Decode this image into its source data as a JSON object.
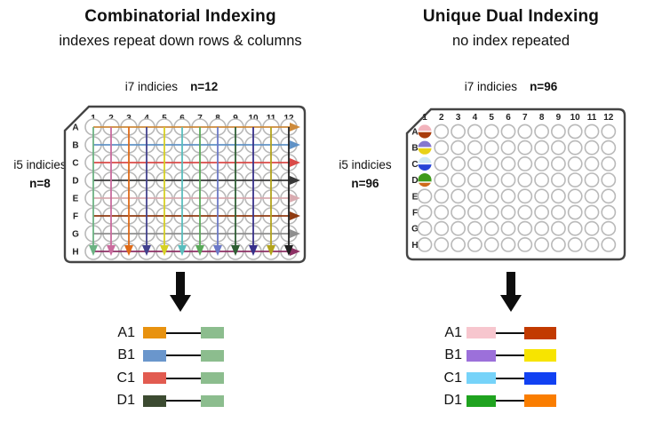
{
  "left_panel": {
    "title": "Combinatorial Indexing",
    "subtitle": "indexes repeat down rows & columns",
    "i7_label": "i7 indicies",
    "i7_n": "n=12",
    "i5_label": "i5 indicies",
    "i5_n": "n=8",
    "plate": {
      "row_labels": [
        "A",
        "B",
        "C",
        "D",
        "E",
        "F",
        "G",
        "H"
      ],
      "col_labels": [
        "1",
        "2",
        "3",
        "4",
        "5",
        "6",
        "7",
        "8",
        "9",
        "10",
        "11",
        "12"
      ],
      "row_arrow_colors": [
        "#cd8a3b",
        "#6092c6",
        "#d94a47",
        "#383838",
        "#d9abb0",
        "#8f3a10",
        "#8e8e8e",
        "#8d3064"
      ],
      "col_arrow_colors": [
        "#6cb283",
        "#c96b9d",
        "#de6a18",
        "#42418d",
        "#d6d024",
        "#5abdbd",
        "#58a858",
        "#6b79c7",
        "#2e5e33",
        "#37308a",
        "#b2a31c",
        "#1f1f1f"
      ]
    },
    "legend": [
      {
        "label": "A1",
        "left_color": "#e8920f",
        "right_color": "#8cbd8e"
      },
      {
        "label": "B1",
        "left_color": "#6a96cc",
        "right_color": "#8cbd8e"
      },
      {
        "label": "C1",
        "left_color": "#e25b50",
        "right_color": "#8cbd8e"
      },
      {
        "label": "D1",
        "left_color": "#3c4b31",
        "right_color": "#8cbd8e"
      }
    ]
  },
  "right_panel": {
    "title": "Unique Dual Indexing",
    "subtitle": "no index repeated",
    "i7_label": "i7 indicies",
    "i7_n": "n=96",
    "i5_label": "i5 indicies",
    "i5_n": "n=96",
    "plate": {
      "row_labels": [
        "A",
        "B",
        "C",
        "D",
        "E",
        "F",
        "G",
        "H"
      ],
      "col_labels": [
        "1",
        "2",
        "3",
        "4",
        "5",
        "6",
        "7",
        "8",
        "9",
        "10",
        "11",
        "12"
      ],
      "colored_wells": [
        {
          "well": "A1",
          "row": 0,
          "col": 0,
          "top": "#f2b3bc",
          "bottom": "#a93c0c",
          "split": 0.5
        },
        {
          "well": "B1",
          "row": 1,
          "col": 0,
          "top": "#8577cf",
          "bottom": "#e8d119",
          "split": 0.5
        },
        {
          "well": "C1",
          "row": 2,
          "col": 0,
          "top": "#cfe9f4",
          "bottom": "#2744d6",
          "split": 0.5
        },
        {
          "well": "D1",
          "row": 3,
          "col": 0,
          "top": "#3f9b1b",
          "bottom": "#cf6a1a",
          "split": 0.66
        }
      ]
    },
    "legend": [
      {
        "label": "A1",
        "left_color": "#f7c6ce",
        "right_color": "#c23a00"
      },
      {
        "label": "B1",
        "left_color": "#9c70da",
        "right_color": "#f7e400"
      },
      {
        "label": "C1",
        "left_color": "#76d3f9",
        "right_color": "#1141f2"
      },
      {
        "label": "D1",
        "left_color": "#1fa31f",
        "right_color": "#fa7d00"
      }
    ]
  },
  "colors": {
    "plate_border": "#454545",
    "well_outline": "#b9b9b9",
    "label_text": "#222222",
    "arrow_black": "#0d0d0d"
  }
}
